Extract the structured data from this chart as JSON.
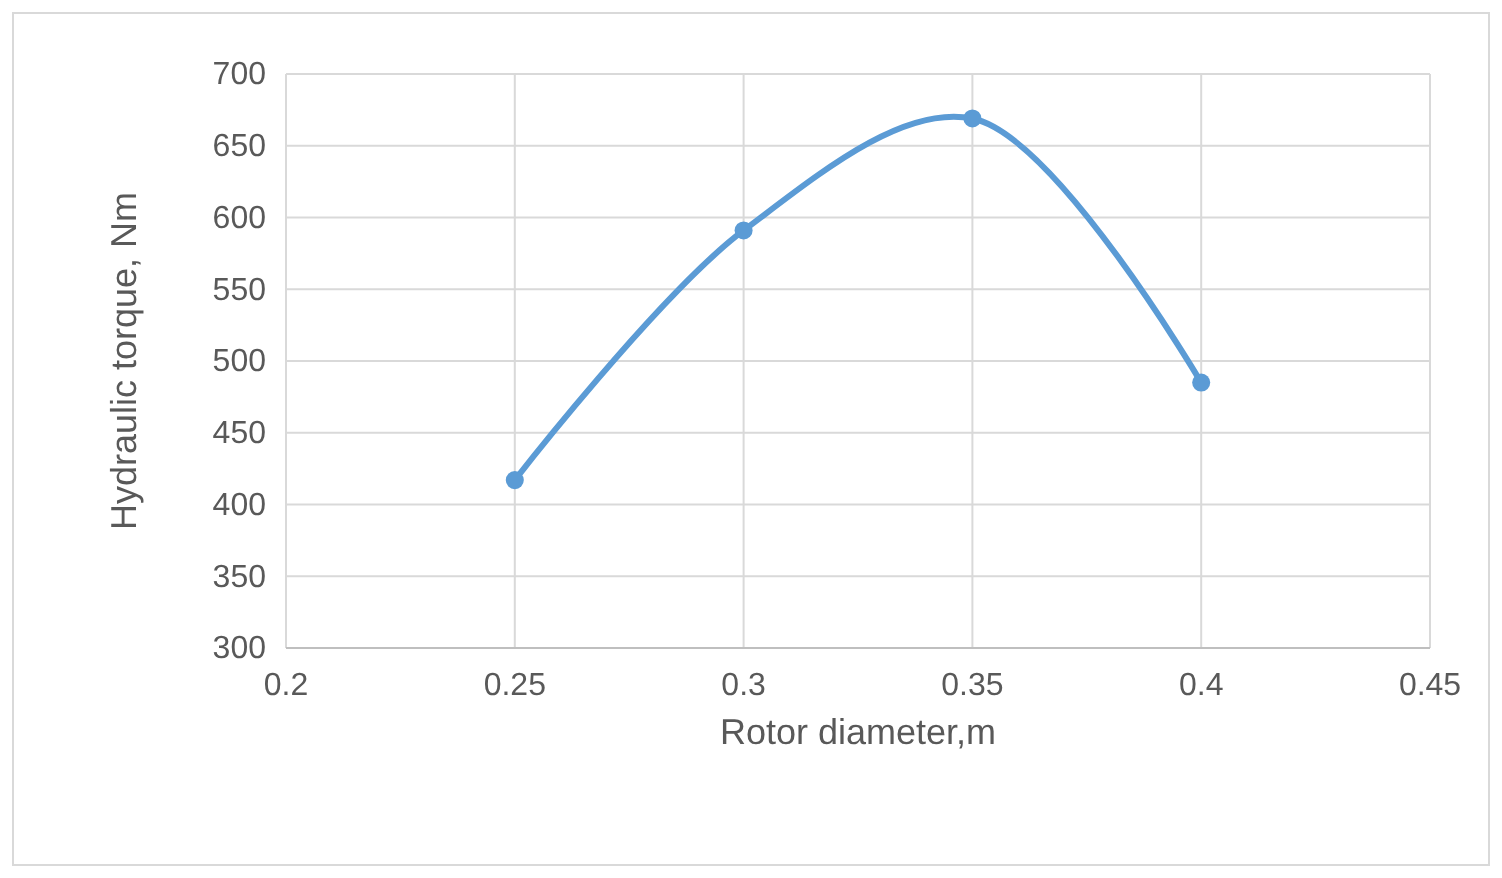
{
  "chart_data": {
    "type": "line",
    "xlabel": "Rotor diameter,m",
    "ylabel": "Hydraulic torque, Nm",
    "x": [
      0.25,
      0.3,
      0.35,
      0.4
    ],
    "series": [
      {
        "color": "#5b9bd5",
        "values": [
          417,
          591,
          669,
          485
        ]
      }
    ],
    "xlim": [
      0.2,
      0.45
    ],
    "xticks": [
      0.2,
      0.25,
      0.3,
      0.35,
      0.4,
      0.45
    ],
    "ylim": [
      300,
      700
    ],
    "yticks": [
      300,
      350,
      400,
      450,
      500,
      550,
      600,
      650,
      700
    ],
    "grid": true,
    "marker": "circle",
    "line_style": "solid"
  }
}
